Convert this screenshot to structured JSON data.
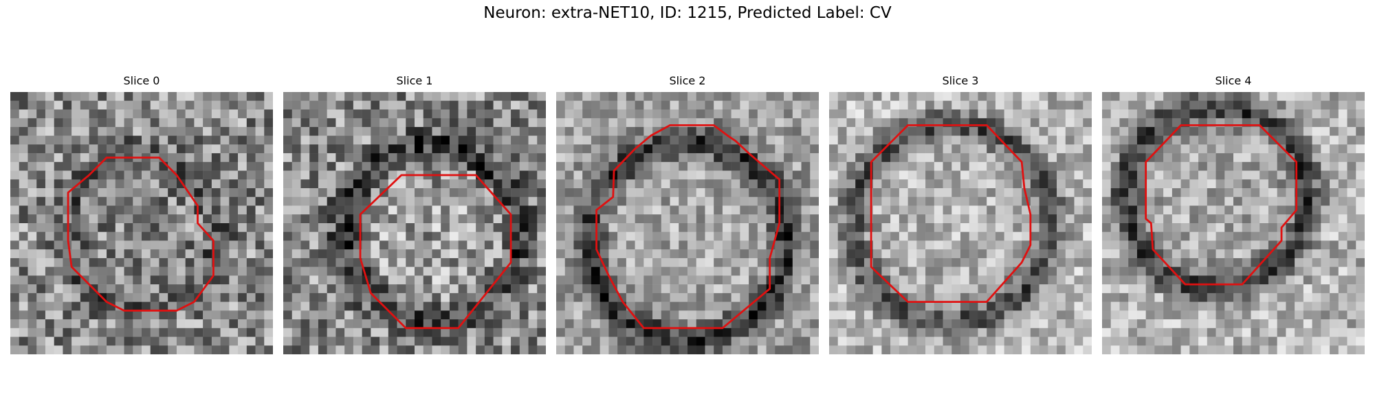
{
  "figure": {
    "title": "Neuron: extra-NET10, ID: 1215, Predicted Label: CV"
  },
  "panels": [
    {
      "title": "Slice 0"
    },
    {
      "title": "Slice 1"
    },
    {
      "title": "Slice 2"
    },
    {
      "title": "Slice 3"
    },
    {
      "title": "Slice 4"
    }
  ],
  "style": {
    "contour_color": "#e01010",
    "colormap": "grayscale"
  }
}
